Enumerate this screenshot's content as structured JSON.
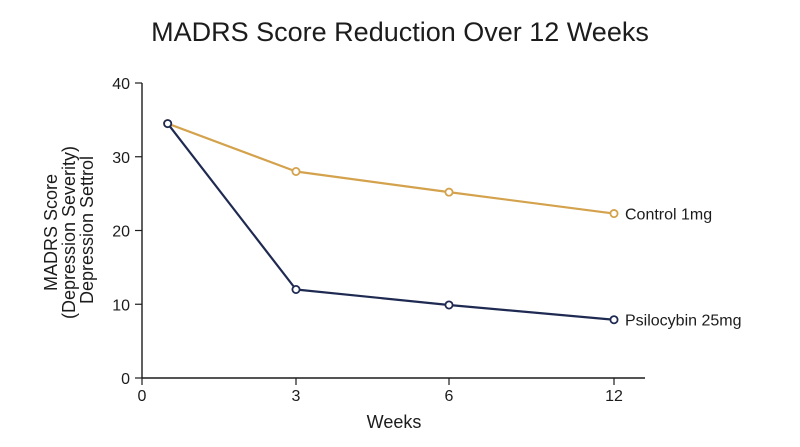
{
  "chart_data": {
    "type": "line",
    "title": "MADRS Score Reduction Over 12 Weeks",
    "xlabel": "Weeks",
    "ylabel_lines": [
      "MADRS Score",
      "(Depression Severity)",
      "Depression Settrol"
    ],
    "x_ticks": [
      "0",
      "3",
      "6",
      "12"
    ],
    "y_ticks": [
      "0",
      "10",
      "20",
      "30",
      "40"
    ],
    "ylim": [
      0,
      40
    ],
    "grid": false,
    "series": [
      {
        "name": "Control 1mg",
        "color": "#d4a24c",
        "points": [
          {
            "x": 0.5,
            "y": 34.5
          },
          {
            "x": 3,
            "y": 28
          },
          {
            "x": 6,
            "y": 25.2
          },
          {
            "x": 12,
            "y": 22.3
          }
        ]
      },
      {
        "name": "Psilocybin 25mg",
        "color": "#1f2a52",
        "points": [
          {
            "x": 0.5,
            "y": 34.5
          },
          {
            "x": 3,
            "y": 12
          },
          {
            "x": 6,
            "y": 9.9
          },
          {
            "x": 12,
            "y": 7.9
          }
        ]
      }
    ]
  }
}
